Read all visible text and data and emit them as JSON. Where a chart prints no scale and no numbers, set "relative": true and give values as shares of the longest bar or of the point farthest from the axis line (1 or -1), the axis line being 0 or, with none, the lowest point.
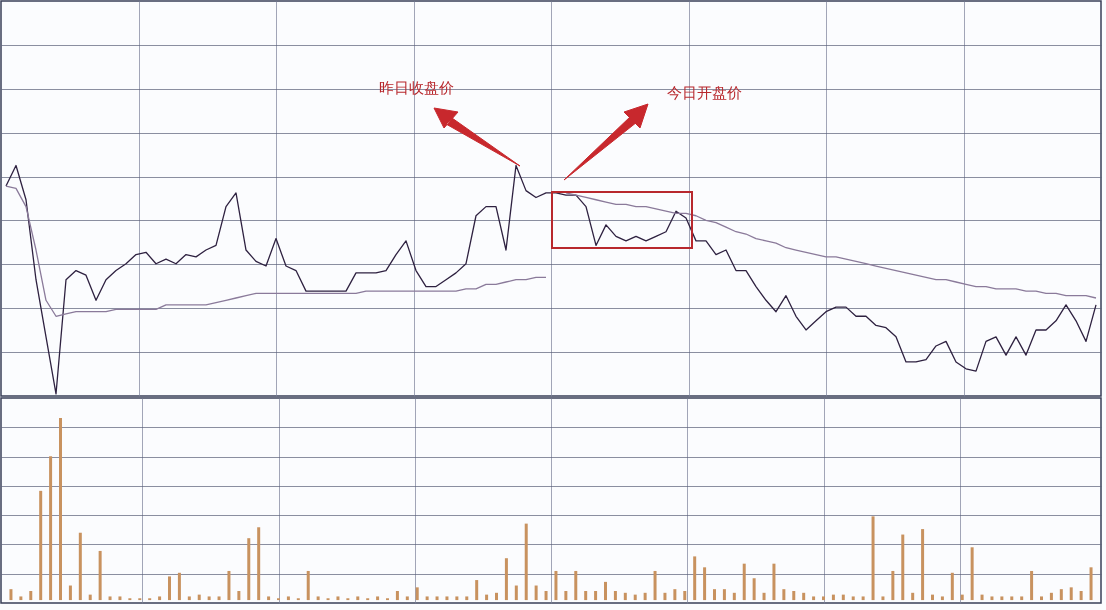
{
  "chart_data": [
    {
      "type": "line",
      "relative": true,
      "grid": true,
      "categories": [
        null,
        null,
        null,
        null,
        null,
        null,
        null,
        null,
        null,
        null,
        null,
        null,
        null,
        null,
        null,
        null,
        null,
        null,
        null,
        null,
        null,
        null,
        null,
        null,
        null,
        null,
        null,
        null,
        null,
        null,
        null,
        null,
        null,
        null,
        null,
        null,
        null,
        null,
        null,
        null,
        null,
        null,
        null,
        null,
        null,
        null,
        null,
        null,
        null,
        null,
        null,
        null,
        null,
        null,
        null,
        null,
        null,
        null,
        null,
        null,
        null,
        null,
        null,
        null,
        null,
        null,
        null,
        null,
        null,
        null,
        null,
        null,
        null,
        null,
        null,
        null,
        null,
        null,
        null,
        null,
        null,
        null,
        null,
        null,
        null,
        null,
        null,
        null,
        null,
        null,
        null,
        null,
        null,
        null,
        null,
        null,
        null,
        null,
        null,
        null,
        null,
        null,
        null,
        null,
        null,
        null,
        null,
        null,
        null,
        null
      ],
      "series": [
        {
          "color": "#2e2140",
          "values": [
            0.91,
            1.0,
            0.85,
            0.5,
            0.25,
            0,
            0.5,
            0.54,
            0.52,
            0.41,
            0.5,
            0.54,
            0.57,
            0.61,
            0.62,
            0.57,
            0.59,
            0.57,
            0.61,
            0.6,
            0.63,
            0.65,
            0.82,
            0.88,
            0.63,
            0.58,
            0.56,
            0.68,
            0.56,
            0.54,
            0.45,
            0.45,
            0.45,
            0.45,
            0.45,
            0.53,
            0.53,
            0.53,
            0.54,
            0.61,
            0.67,
            0.54,
            0.47,
            0.47,
            0.5,
            0.53,
            0.57,
            0.78,
            0.82,
            0.82,
            0.63,
            1.0,
            0.89,
            0.86,
            0.88,
            0.88,
            0.87,
            0.87,
            0.82,
            0.65,
            0.74,
            0.69,
            0.67,
            0.69,
            0.67,
            0.69,
            0.71,
            0.8,
            0.77,
            0.67,
            0.67,
            0.61,
            0.63,
            0.54,
            0.54,
            0.47,
            0.41,
            0.36,
            0.43,
            0.34,
            0.28,
            0.32,
            0.36,
            0.38,
            0.38,
            0.34,
            0.34,
            0.3,
            0.29,
            0.25,
            0.14,
            0.14,
            0.15,
            0.21,
            0.23,
            0.14,
            0.11,
            0.1,
            0.23,
            0.25,
            0.17,
            0.25,
            0.17,
            0.28,
            0.28,
            0.32,
            0.39,
            0.32,
            0.23,
            0.39
          ]
        },
        {
          "color": "#8a7a9a",
          "values": [
            0.91,
            0.9,
            0.82,
            0.63,
            0.41,
            0.34,
            0.35,
            0.36,
            0.36,
            0.36,
            0.36,
            0.37,
            0.37,
            0.37,
            0.37,
            0.37,
            0.39,
            0.39,
            0.39,
            0.39,
            0.39,
            0.4,
            0.41,
            0.42,
            0.43,
            0.44,
            0.44,
            0.44,
            0.44,
            0.44,
            0.44,
            0.44,
            0.44,
            0.44,
            0.44,
            0.44,
            0.45,
            0.45,
            0.45,
            0.45,
            0.45,
            0.45,
            0.45,
            0.45,
            0.45,
            0.45,
            0.46,
            0.46,
            0.48,
            0.48,
            0.49,
            0.5,
            0.5,
            0.51,
            0.51,
            null,
            0.88,
            0.87,
            0.86,
            0.85,
            0.84,
            0.83,
            0.83,
            0.82,
            0.82,
            0.81,
            0.8,
            0.79,
            0.79,
            0.78,
            0.76,
            0.75,
            0.73,
            0.71,
            0.7,
            0.68,
            0.67,
            0.66,
            0.64,
            0.63,
            0.62,
            0.61,
            0.6,
            0.6,
            0.59,
            0.58,
            0.57,
            0.56,
            0.55,
            0.54,
            0.53,
            0.52,
            0.51,
            0.5,
            0.5,
            0.49,
            0.48,
            0.47,
            0.47,
            0.46,
            0.46,
            0.46,
            0.45,
            0.45,
            0.44,
            0.44,
            0.43,
            0.43,
            0.43,
            0.42
          ]
        }
      ],
      "annotations": [
        "昨日收盘价",
        "今日开盘价"
      ]
    },
    {
      "type": "bar",
      "relative": true,
      "grid": true,
      "color": "#c8925f",
      "categories": [
        null,
        null,
        null,
        null,
        null,
        null,
        null,
        null,
        null,
        null,
        null,
        null,
        null,
        null,
        null,
        null,
        null,
        null,
        null,
        null,
        null,
        null,
        null,
        null,
        null,
        null,
        null,
        null,
        null,
        null,
        null,
        null,
        null,
        null,
        null,
        null,
        null,
        null,
        null,
        null,
        null,
        null,
        null,
        null,
        null,
        null,
        null,
        null,
        null,
        null,
        null,
        null,
        null,
        null,
        null,
        null,
        null,
        null,
        null,
        null,
        null,
        null,
        null,
        null,
        null,
        null,
        null,
        null,
        null,
        null,
        null,
        null,
        null,
        null,
        null,
        null,
        null,
        null,
        null,
        null,
        null,
        null,
        null,
        null,
        null,
        null,
        null,
        null,
        null,
        null,
        null,
        null,
        null,
        null,
        null,
        null,
        null,
        null,
        null,
        null,
        null,
        null,
        null,
        null,
        null,
        null,
        null,
        null,
        null,
        null
      ],
      "values": [
        0.06,
        0.02,
        0.05,
        0.6,
        0.79,
        1.0,
        0.08,
        0.37,
        0.03,
        0.27,
        0.02,
        0.02,
        0.01,
        0.01,
        0.01,
        0.02,
        0.13,
        0.15,
        0.02,
        0.03,
        0.02,
        0.02,
        0.16,
        0.05,
        0.34,
        0.4,
        0.02,
        0.01,
        0.02,
        0.01,
        0.16,
        0.02,
        0.01,
        0.02,
        0.01,
        0.02,
        0.01,
        0.02,
        0.01,
        0.05,
        0.02,
        0.07,
        0.02,
        0.02,
        0.02,
        0.02,
        0.02,
        0.11,
        0.03,
        0.04,
        0.23,
        0.08,
        0.42,
        0.08,
        0.05,
        0.16,
        0.05,
        0.16,
        0.05,
        0.05,
        0.1,
        0.05,
        0.04,
        0.03,
        0.04,
        0.16,
        0.04,
        0.06,
        0.05,
        0.24,
        0.18,
        0.06,
        0.06,
        0.04,
        0.2,
        0.12,
        0.04,
        0.2,
        0.06,
        0.05,
        0.04,
        0.02,
        0.02,
        0.03,
        0.03,
        0.02,
        0.02,
        0.46,
        0.02,
        0.16,
        0.36,
        0.04,
        0.39,
        0.03,
        0.02,
        0.15,
        0.03,
        0.29,
        0.03,
        0.02,
        0.02,
        0.02,
        0.02,
        0.16,
        0.02,
        0.04,
        0.06,
        0.07,
        0.05,
        0.18
      ]
    }
  ]
}
